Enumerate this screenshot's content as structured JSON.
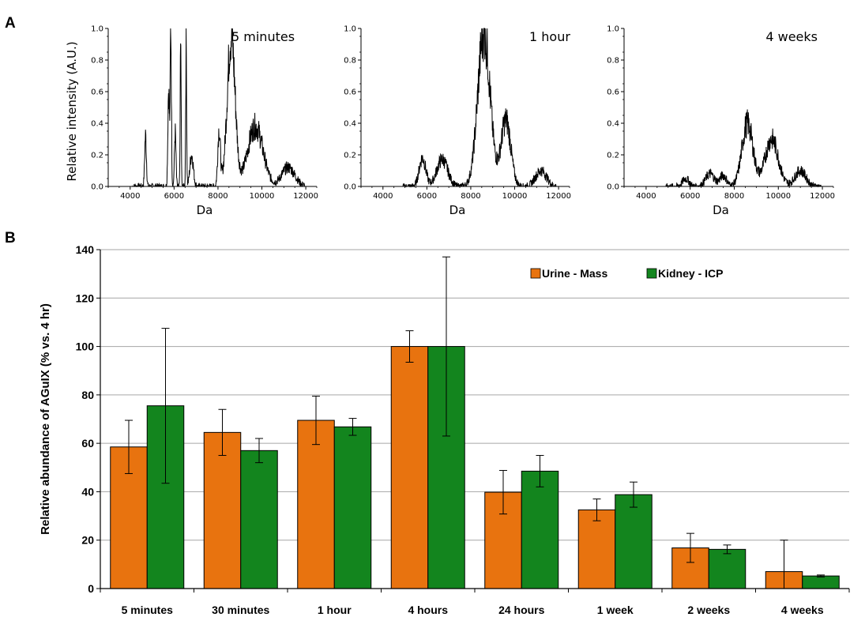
{
  "panels": {
    "a_letter": "A",
    "b_letter": "B"
  },
  "chart_data": [
    {
      "type": "line",
      "panel": "A",
      "label": "5 minutes",
      "ylabel": "Relative intensity (A.U.)",
      "xlabel": "Da",
      "xlim": [
        3000,
        12500
      ],
      "ylim": [
        0,
        1.0
      ],
      "x_ticks": [
        4000,
        6000,
        8000,
        10000,
        12000
      ],
      "y_ticks": [
        "0.0",
        "0.2",
        "0.4",
        "0.6",
        "0.8",
        "1.0"
      ],
      "peaks": [
        {
          "x": 4700,
          "y": 0.32,
          "w": 40
        },
        {
          "x": 5750,
          "y": 0.62,
          "w": 35
        },
        {
          "x": 5850,
          "y": 1.0,
          "w": 28
        },
        {
          "x": 6050,
          "y": 0.34,
          "w": 35
        },
        {
          "x": 6300,
          "y": 0.9,
          "w": 22
        },
        {
          "x": 6550,
          "y": 0.9,
          "w": 22
        },
        {
          "x": 6800,
          "y": 0.2,
          "w": 80
        },
        {
          "x": 8050,
          "y": 0.35,
          "w": 60
        },
        {
          "x": 8600,
          "y": 0.95,
          "w": 180
        },
        {
          "x": 9700,
          "y": 0.38,
          "w": 350
        },
        {
          "x": 11200,
          "y": 0.12,
          "w": 300
        }
      ]
    },
    {
      "type": "line",
      "panel": "A",
      "label": "1 hour",
      "xlabel": "Da",
      "xlim": [
        3000,
        12500
      ],
      "ylim": [
        0,
        1.0
      ],
      "x_ticks": [
        4000,
        6000,
        8000,
        10000,
        12000
      ],
      "y_ticks": [
        "0.0",
        "0.2",
        "0.4",
        "0.6",
        "0.8",
        "1.0"
      ],
      "peaks": [
        {
          "x": 5800,
          "y": 0.18,
          "w": 150
        },
        {
          "x": 6700,
          "y": 0.17,
          "w": 250
        },
        {
          "x": 8600,
          "y": 0.98,
          "w": 280
        },
        {
          "x": 9600,
          "y": 0.42,
          "w": 220
        },
        {
          "x": 11200,
          "y": 0.1,
          "w": 250
        }
      ]
    },
    {
      "type": "line",
      "panel": "A",
      "label": "4 weeks",
      "xlabel": "Da",
      "xlim": [
        3000,
        12500
      ],
      "ylim": [
        0,
        1.0
      ],
      "x_ticks": [
        4000,
        6000,
        8000,
        10000,
        12000
      ],
      "y_ticks": [
        "0.0",
        "0.2",
        "0.4",
        "0.6",
        "0.8",
        "1.0"
      ],
      "peaks": [
        {
          "x": 5800,
          "y": 0.05,
          "w": 150
        },
        {
          "x": 6900,
          "y": 0.08,
          "w": 200
        },
        {
          "x": 7500,
          "y": 0.07,
          "w": 150
        },
        {
          "x": 8600,
          "y": 0.4,
          "w": 250
        },
        {
          "x": 9700,
          "y": 0.3,
          "w": 300
        },
        {
          "x": 11000,
          "y": 0.1,
          "w": 250
        }
      ]
    },
    {
      "type": "bar",
      "panel": "B",
      "ylabel": "Relative abundance of AGuIX (% vs. 4 hr)",
      "ylim": [
        0,
        140
      ],
      "y_ticks": [
        0,
        20,
        40,
        60,
        80,
        100,
        120,
        140
      ],
      "grid": true,
      "legend": "top-right",
      "categories": [
        "5 minutes",
        "30 minutes",
        "1 hour",
        "4 hours",
        "24 hours",
        "1 week",
        "2 weeks",
        "4 weeks"
      ],
      "series": [
        {
          "name": "Urine - Mass",
          "color": "#E8730F",
          "values": [
            58.5,
            64.5,
            69.5,
            100,
            39.8,
            32.5,
            16.8,
            7.0
          ],
          "errors": [
            11,
            9.5,
            10,
            6.5,
            9,
            4.5,
            6,
            13
          ]
        },
        {
          "name": "Kidney - ICP",
          "color": "#13851E",
          "values": [
            75.5,
            57.0,
            66.8,
            100,
            48.5,
            38.8,
            16.2,
            5.2
          ],
          "errors": [
            32,
            5,
            3.5,
            37,
            6.5,
            5.2,
            1.8,
            0.4
          ]
        }
      ]
    }
  ]
}
